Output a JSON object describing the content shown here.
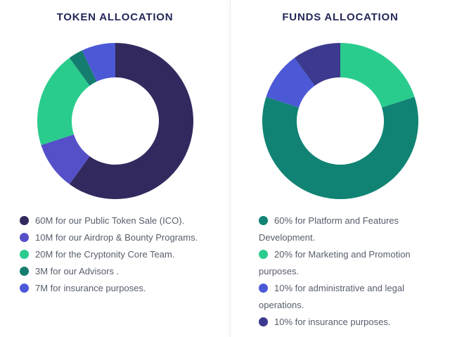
{
  "chart_data": [
    {
      "type": "pie",
      "donut": true,
      "title": "TOKEN ALLOCATION",
      "start_angle_deg_from_top": 0,
      "direction": "clockwise",
      "total": 100,
      "unit": "M tokens",
      "slices": [
        {
          "label": "60M for our Public Token Sale (ICO).",
          "value": 60,
          "color": "#322a5e"
        },
        {
          "label": "10M for our Airdrop & Bounty Programs.",
          "value": 10,
          "color": "#554fc8"
        },
        {
          "label": "20M for the Cryptonity Core Team.",
          "value": 20,
          "color": "#2acc8d"
        },
        {
          "label": "3M for our Advisors .",
          "value": 3,
          "color": "#157d6f"
        },
        {
          "label": "7M for insurance purposes.",
          "value": 7,
          "color": "#4c59d6"
        }
      ],
      "legend": [
        {
          "text": "60M for our Public Token Sale (ICO).",
          "color": "#322a5e"
        },
        {
          "text": "10M for our Airdrop & Bounty Programs.",
          "color": "#554fc8"
        },
        {
          "text": "20M for the Cryptonity Core Team.",
          "color": "#2acc8d"
        },
        {
          "text": "3M for our Advisors .",
          "color": "#157d6f"
        },
        {
          "text": "7M for insurance purposes.",
          "color": "#4c59d6"
        }
      ]
    },
    {
      "type": "pie",
      "donut": true,
      "title": "FUNDS ALLOCATION",
      "start_angle_deg_from_top": 0,
      "direction": "clockwise",
      "total": 100,
      "unit": "%",
      "slices": [
        {
          "label": "20% for Marketing and Promotion purposes.",
          "value": 20,
          "color": "#2acc8d"
        },
        {
          "label": "60% for Platform and Features Development.",
          "value": 60,
          "color": "#108374"
        },
        {
          "label": "10% for administrative and legal operations.",
          "value": 10,
          "color": "#4c59d6"
        },
        {
          "label": "10% for insurance purposes.",
          "value": 10,
          "color": "#3c3a8e"
        }
      ],
      "legend": [
        {
          "text": "60% for Platform and Features Development.",
          "color": "#108374"
        },
        {
          "text": "20% for Marketing and Promotion purposes.",
          "color": "#2acc8d"
        },
        {
          "text": "10% for administrative and legal operations.",
          "color": "#4c59d6"
        },
        {
          "text": "10% for insurance purposes.",
          "color": "#3c3a8e"
        }
      ]
    }
  ],
  "geometry": {
    "svg_size": 226,
    "outer_radius": 111,
    "inner_radius": 62
  }
}
